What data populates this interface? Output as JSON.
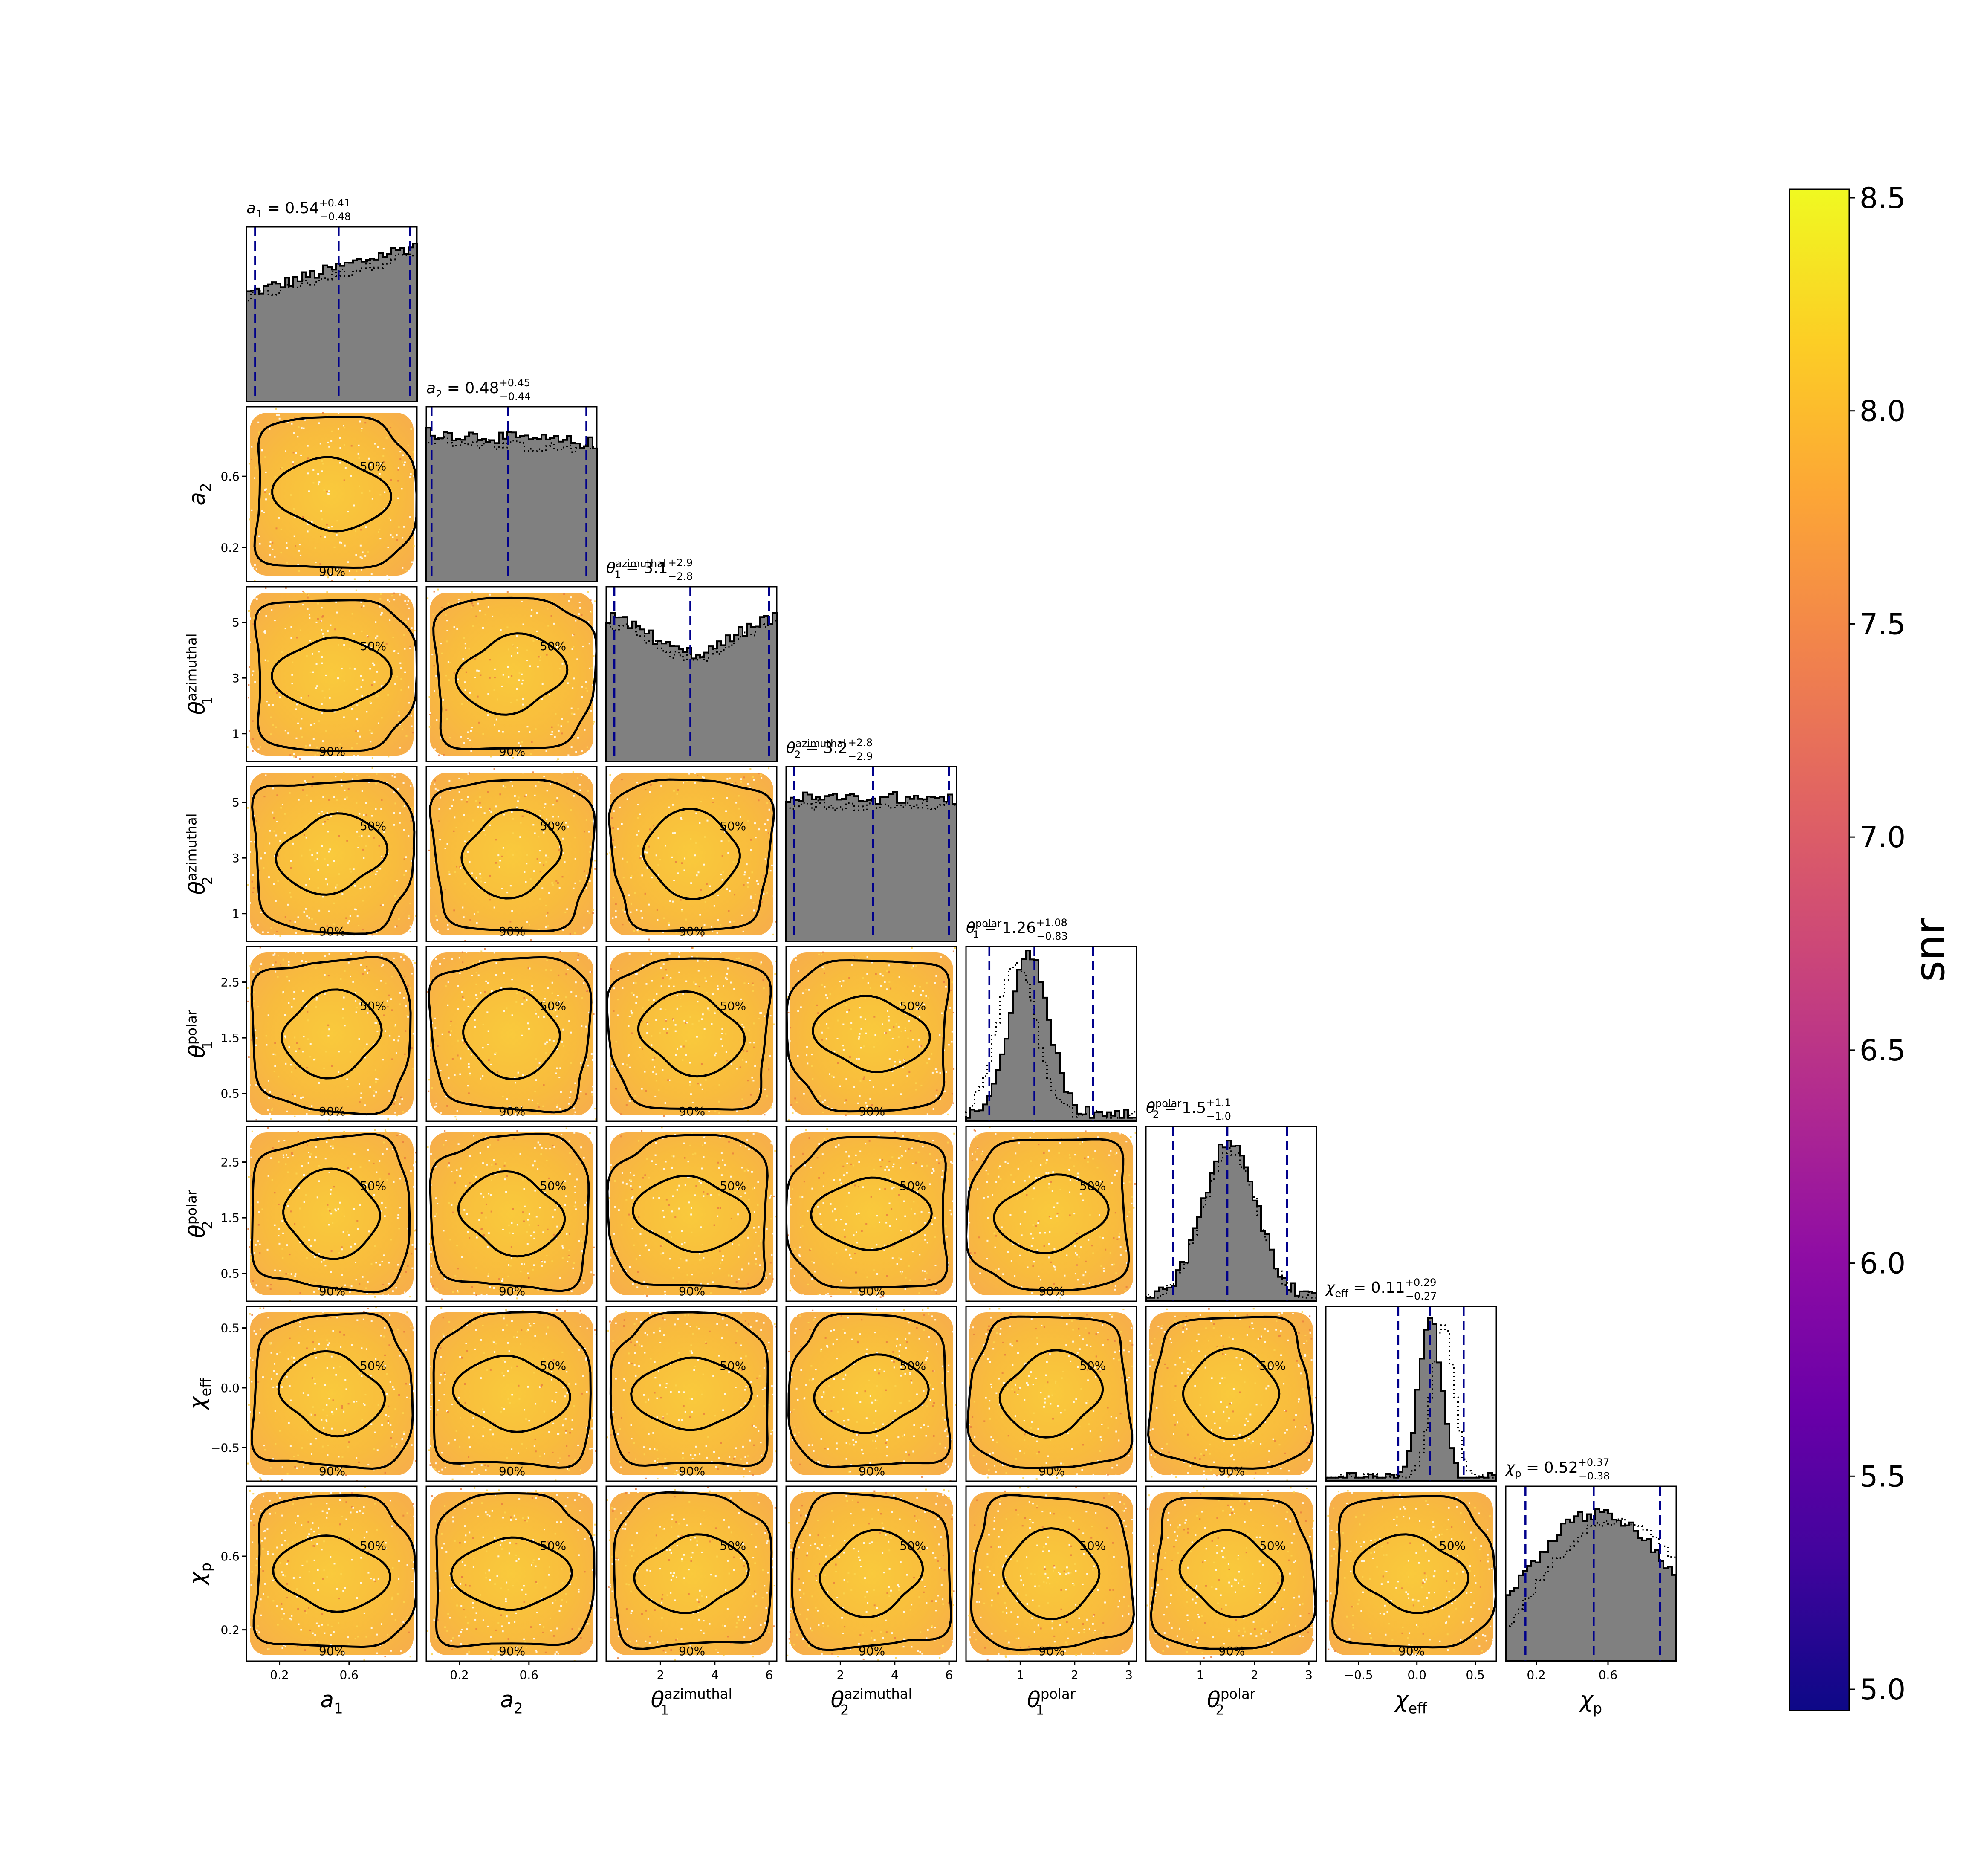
{
  "chart_data": {
    "type": "scatter",
    "subtype": "corner-plot",
    "parameters": [
      {
        "key": "a1",
        "sym": "a",
        "sub": "1",
        "sup": "",
        "range": [
          0.01,
          0.99
        ],
        "ticks": [
          "0.2",
          "0.6"
        ],
        "tickvals": [
          0.2,
          0.6
        ],
        "median": "0.54",
        "plus": "+0.41",
        "minus": "−0.48",
        "lo": 0.06,
        "med": 0.54,
        "hi": 0.95
      },
      {
        "key": "a2",
        "sym": "a",
        "sub": "2",
        "sup": "",
        "range": [
          0.01,
          0.99
        ],
        "ticks": [
          "0.2",
          "0.6"
        ],
        "tickvals": [
          0.2,
          0.6
        ],
        "median": "0.48",
        "plus": "+0.45",
        "minus": "−0.44",
        "lo": 0.04,
        "med": 0.48,
        "hi": 0.93
      },
      {
        "key": "th1az",
        "sym": "θ",
        "sub": "1",
        "sup": "azimuthal",
        "range": [
          0.0,
          6.28
        ],
        "ticks": [
          "1",
          "3",
          "5"
        ],
        "tickvals": [
          1,
          3,
          5
        ],
        "median": "3.1",
        "plus": "+2.9",
        "minus": "−2.8",
        "lo": 0.3,
        "med": 3.1,
        "hi": 6.0
      },
      {
        "key": "th2az",
        "sym": "θ",
        "sub": "2",
        "sup": "azimuthal",
        "range": [
          0.0,
          6.28
        ],
        "ticks": [
          "1",
          "3",
          "5"
        ],
        "tickvals": [
          1,
          3,
          5
        ],
        "median": "3.2",
        "plus": "+2.8",
        "minus": "−2.9",
        "lo": 0.3,
        "med": 3.2,
        "hi": 6.0
      },
      {
        "key": "th1pol",
        "sym": "θ",
        "sub": "1",
        "sup": "polar",
        "range": [
          0.0,
          3.14
        ],
        "ticks": [
          "0.5",
          "1.5",
          "2.5"
        ],
        "tickvals": [
          0.5,
          1.5,
          2.5
        ],
        "median": "1.26",
        "plus": "+1.08",
        "minus": "−0.83",
        "lo": 0.43,
        "med": 1.26,
        "hi": 2.34
      },
      {
        "key": "th2pol",
        "sym": "θ",
        "sub": "2",
        "sup": "polar",
        "range": [
          0.0,
          3.14
        ],
        "ticks": [
          "0.5",
          "1.5",
          "2.5"
        ],
        "tickvals": [
          0.5,
          1.5,
          2.5
        ],
        "median": "1.5",
        "plus": "+1.1",
        "minus": "−1.0",
        "lo": 0.5,
        "med": 1.5,
        "hi": 2.6
      },
      {
        "key": "chieff",
        "sym": "χ",
        "sub": "eff",
        "sup": "",
        "range": [
          -0.78,
          0.68
        ],
        "ticks": [
          "−0.5",
          "0.0",
          "0.5"
        ],
        "tickvals": [
          -0.5,
          0.0,
          0.5
        ],
        "median": "0.11",
        "plus": "+0.29",
        "minus": "−0.27",
        "lo": -0.16,
        "med": 0.11,
        "hi": 0.4
      },
      {
        "key": "chip",
        "sym": "χ",
        "sub": "p",
        "sup": "",
        "range": [
          0.03,
          0.98
        ],
        "ticks": [
          "0.2",
          "0.6"
        ],
        "tickvals": [
          0.2,
          0.6
        ],
        "median": "0.52",
        "plus": "+0.37",
        "minus": "−0.38",
        "lo": 0.14,
        "med": 0.52,
        "hi": 0.89
      }
    ],
    "xtick_labels_all": [
      [
        "0.2",
        "0.6"
      ],
      [
        "0.2",
        "0.6"
      ],
      [
        "2",
        "4",
        "6"
      ],
      [
        "2",
        "4",
        "6"
      ],
      [
        "1",
        "2",
        "3"
      ],
      [
        "1",
        "2",
        "3"
      ],
      [
        "−0.5",
        "0.0",
        "0.5"
      ],
      [
        "0.2",
        "0.6"
      ]
    ],
    "xtick_values_all": [
      [
        0.2,
        0.6
      ],
      [
        0.2,
        0.6
      ],
      [
        2,
        4,
        6
      ],
      [
        2,
        4,
        6
      ],
      [
        1,
        2,
        3
      ],
      [
        1,
        2,
        3
      ],
      [
        -0.5,
        0.0,
        0.5
      ],
      [
        0.2,
        0.6
      ]
    ],
    "contour_levels": [
      "50%",
      "90%"
    ],
    "colorbar": {
      "label": "snr",
      "min": 4.95,
      "max": 8.52,
      "ticks": [
        "5.0",
        "5.5",
        "6.0",
        "6.5",
        "7.0",
        "7.5",
        "8.0",
        "8.5"
      ],
      "tickvals": [
        5.0,
        5.5,
        6.0,
        6.5,
        7.0,
        7.5,
        8.0,
        8.5
      ],
      "colormap": "plasma"
    },
    "colors": {
      "histogram_fill": "#808080",
      "histogram_edge": "#000000",
      "quantile_lines": "#00008b",
      "contours": "#000000",
      "scatter_dominant": "#f9b52a"
    }
  }
}
